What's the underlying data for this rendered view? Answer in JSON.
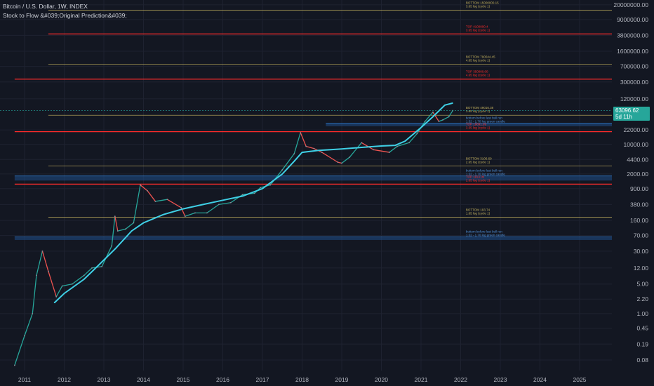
{
  "header": {
    "title": "Bitcoin / U.S. Dollar, 1W, INDEX",
    "indicator": "Stock to Flow &#039;Original Prediction&#039;"
  },
  "colors": {
    "background": "#131722",
    "grid": "#1e2230",
    "price_up": "#26a69a",
    "price_down": "#ef5350",
    "model_line": "#3fd0e6",
    "top_line": "#ff2b2b",
    "bottom_line": "#c8b560",
    "band_fill": "#1f4e8a",
    "text": "#b2b5be"
  },
  "price_badge": {
    "price": "63096.62",
    "countdown": "5d 11h"
  },
  "chart_data": {
    "type": "line",
    "scale": "log",
    "x_ticks": [
      "2011",
      "2012",
      "2013",
      "2014",
      "2015",
      "2016",
      "2017",
      "2018",
      "2019",
      "2020",
      "2021",
      "2022",
      "2023",
      "2024",
      "2025"
    ],
    "y_ticks": [
      "20000000.00",
      "9000000.00",
      "3800000.00",
      "1600000.00",
      "700000.00",
      "300000.00",
      "120000.00",
      "22000.00",
      "10000.00",
      "4400.00",
      "2000.00",
      "900.00",
      "380.00",
      "160.00",
      "70.00",
      "30.00",
      "12.00",
      "5.00",
      "2.20",
      "1.00",
      "0.45",
      "0.19",
      "0.08"
    ],
    "ylim": [
      0.045,
      26000000
    ],
    "series": [
      {
        "kind": "price",
        "x": [
          2010.75,
          2011.0,
          2011.2,
          2011.3,
          2011.45,
          2011.6,
          2011.8,
          2011.95,
          2012.2,
          2012.5,
          2012.7,
          2012.95,
          2013.2,
          2013.28,
          2013.35,
          2013.55,
          2013.75,
          2013.92,
          2014.1,
          2014.3,
          2014.6,
          2014.95,
          2015.05,
          2015.3,
          2015.6,
          2015.9,
          2016.2,
          2016.5,
          2016.8,
          2016.95,
          2017.2,
          2017.5,
          2017.8,
          2017.96,
          2018.1,
          2018.3,
          2018.5,
          2018.9,
          2019.0,
          2019.2,
          2019.5,
          2019.8,
          2020.2,
          2020.4,
          2020.7,
          2020.9,
          2021.1,
          2021.3,
          2021.45,
          2021.55,
          2021.7,
          2021.8
        ],
        "values": [
          0.06,
          0.3,
          1.0,
          8.0,
          30.0,
          10.0,
          2.5,
          4.5,
          5.0,
          8.0,
          12.0,
          13.0,
          40.0,
          200.0,
          90.0,
          100.0,
          140.0,
          1100.0,
          800.0,
          450.0,
          500.0,
          320.0,
          200.0,
          240.0,
          240.0,
          380.0,
          420.0,
          650.0,
          700.0,
          950.0,
          1100.0,
          2500.0,
          6000.0,
          19000.0,
          9000.0,
          8000.0,
          6500.0,
          3800.0,
          3600.0,
          5000.0,
          11000.0,
          7500.0,
          6500.0,
          9000.0,
          11000.0,
          18000.0,
          35000.0,
          58000.0,
          35000.0,
          38000.0,
          45000.0,
          63096.62
        ]
      },
      {
        "kind": "model",
        "x": [
          2011.75,
          2012.0,
          2012.5,
          2012.9,
          2013.3,
          2013.7,
          2014.0,
          2014.5,
          2015.0,
          2015.5,
          2016.0,
          2016.5,
          2017.0,
          2017.5,
          2017.8,
          2018.0,
          2018.4,
          2019.0,
          2019.5,
          2020.0,
          2020.35,
          2020.6,
          2021.0,
          2021.3,
          2021.6,
          2021.8
        ],
        "values": [
          1.8,
          3.0,
          6.5,
          15.0,
          35.0,
          90.0,
          140.0,
          220.0,
          300.0,
          380.0,
          480.0,
          600.0,
          900.0,
          2000.0,
          4000.0,
          6500.0,
          7200.0,
          7800.0,
          8500.0,
          9200.0,
          9500.0,
          12000.0,
          25000.0,
          45000.0,
          85000.0,
          95000.0
        ]
      }
    ],
    "levels": [
      {
        "kind": "bottom",
        "value": 15000000,
        "from": 2011.6,
        "label": "BOTTOM 15000000.15",
        "sub": "3.65 log (cycle 1)"
      },
      {
        "kind": "top",
        "value": 4100000,
        "from": 2011.6,
        "label": "TOP 4100000.4",
        "sub": "3.65 log (cycle 1)"
      },
      {
        "kind": "bottom",
        "value": 790000,
        "from": 2011.6,
        "label": "BOTTOM 790044.45",
        "sub": "4.65 log (cycle 1)"
      },
      {
        "kind": "top",
        "value": 350000,
        "from": 2010.75,
        "label": "TOP 350000.00",
        "sub": "4.65 log (cycle 1)"
      },
      {
        "kind": "bottom",
        "value": 49000,
        "from": 2011.6,
        "label": "BOTTOM 49016.38",
        "sub": "3.65 log (cycle 1)"
      },
      {
        "kind": "band",
        "value": 32000,
        "value2": 27000,
        "from": 2018.6,
        "label": "bottom before last bull run",
        "sub": "1.52 - 1.70 log green candle"
      },
      {
        "kind": "top",
        "value": 20000,
        "from": 2010.75,
        "label": "TOP 19891.99",
        "sub": "3.65 log (cycle 1)"
      },
      {
        "kind": "bottom",
        "value": 3100,
        "from": 2011.6,
        "label": "BOTTOM 3106.69",
        "sub": "2.65 log (cycle 1)"
      },
      {
        "kind": "band",
        "value": 1800,
        "value2": 1400,
        "from": 2010.75,
        "label": "bottom before last bull run",
        "sub": "1.52 - 1.70 log green candle"
      },
      {
        "kind": "top",
        "value": 1150,
        "from": 2010.75,
        "label": "TOP 1163.00",
        "sub": "2.65 log (cycle 1)"
      },
      {
        "kind": "bottom",
        "value": 190,
        "from": 2011.6,
        "label": "BOTTOM 193.74",
        "sub": "1.65 log (cycle 1)"
      },
      {
        "kind": "band",
        "value": 65,
        "value2": 55,
        "from": 2010.75,
        "label": "bottom before last bull run",
        "sub": "1.52 - 1.70 log green candle"
      }
    ]
  }
}
